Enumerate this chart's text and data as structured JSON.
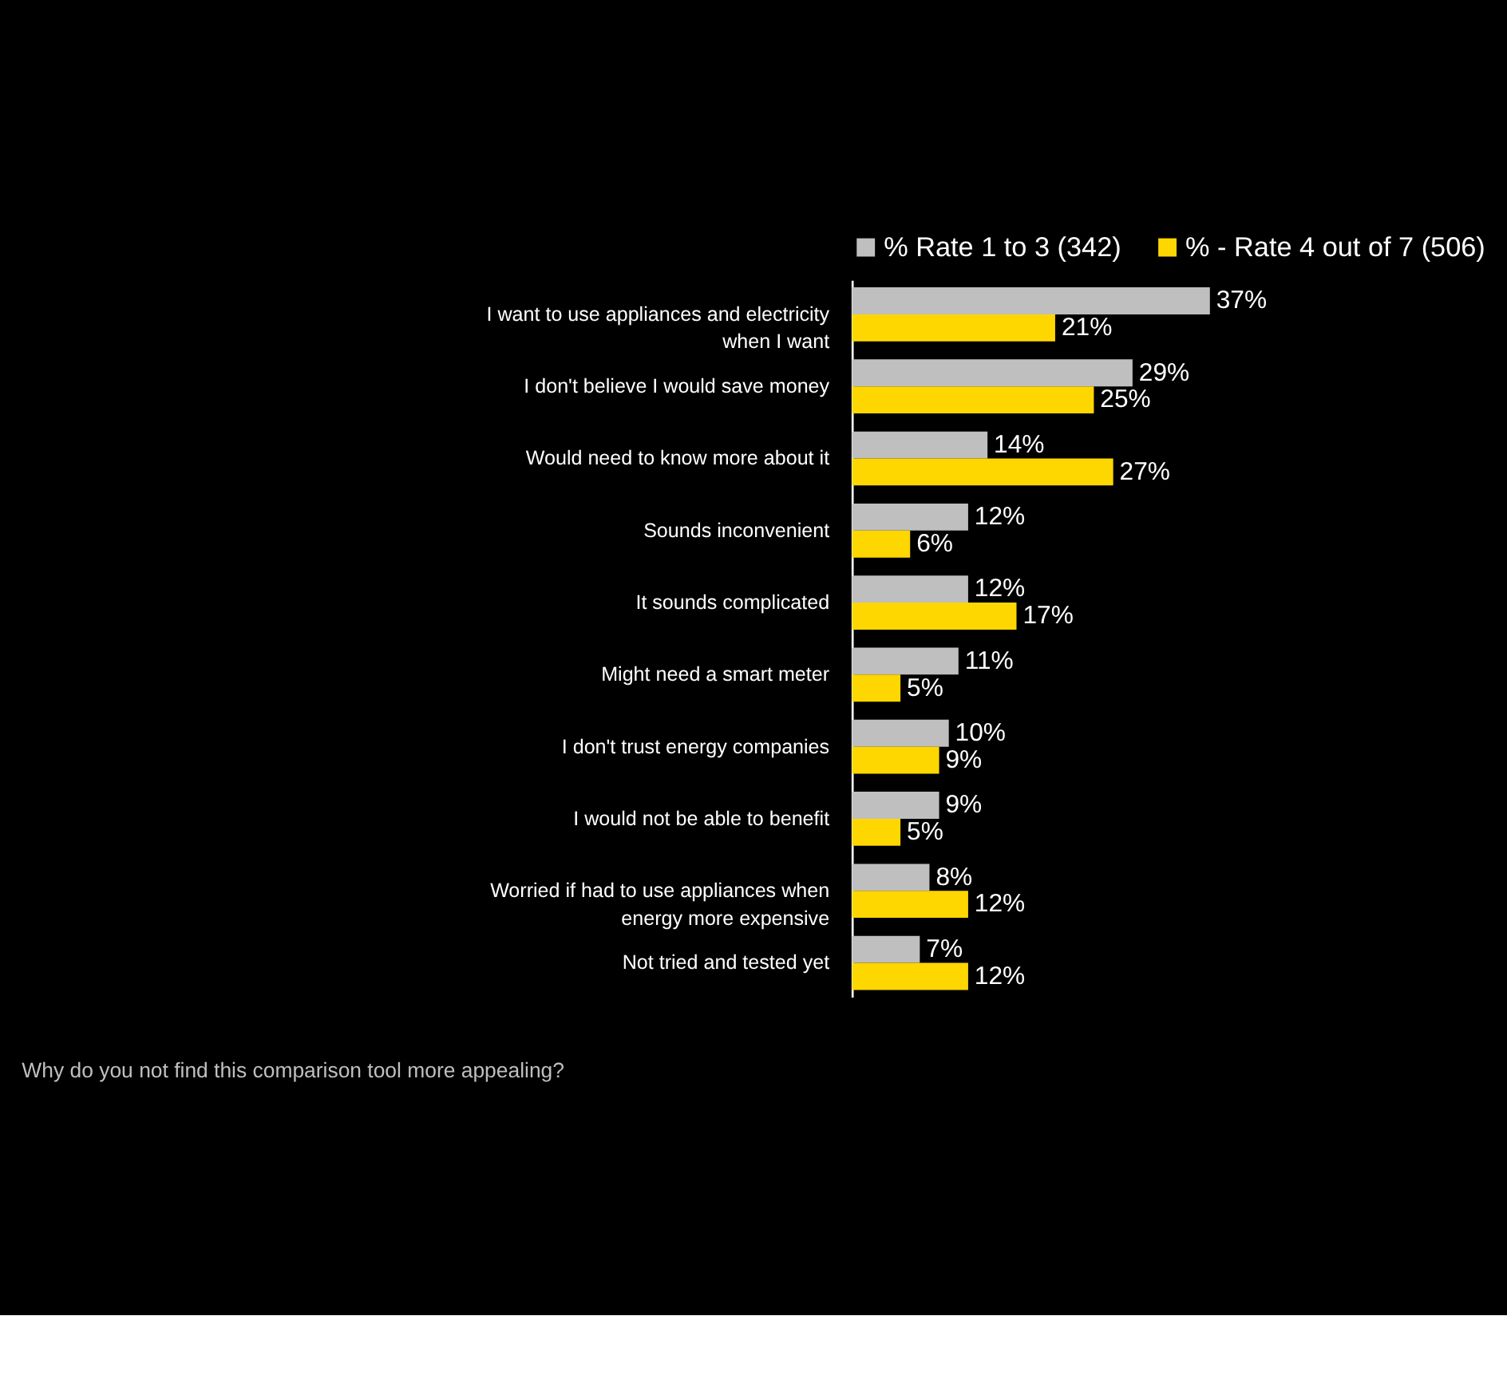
{
  "chart_data": {
    "type": "bar",
    "orientation": "horizontal",
    "legend": "top",
    "categories": [
      "I want to use appliances and electricity when I want",
      "I don't believe I would save money",
      "Would need to know more about it",
      "Sounds inconvenient",
      "It sounds complicated",
      "Might need a smart meter",
      "I don't trust energy companies",
      "I would not be able to benefit",
      "Worried if had to use appliances when energy more expensive",
      "Not tried and tested yet"
    ],
    "series": [
      {
        "name": "% Rate 1 to 3 (342)",
        "color": "#bfbfbf",
        "values": [
          37,
          29,
          14,
          12,
          12,
          11,
          10,
          9,
          8,
          7
        ],
        "value_labels": [
          "37%",
          "29%",
          "14%",
          "12%",
          "12%",
          "11%",
          "10%",
          "9%",
          "8%",
          "7%"
        ]
      },
      {
        "name": "% - Rate 4 out of 7 (506)",
        "color": "#ffd700",
        "values": [
          21,
          25,
          27,
          6,
          17,
          5,
          9,
          5,
          12,
          12
        ],
        "value_labels": [
          "21%",
          "25%",
          "27%",
          "6%",
          "17%",
          "5%",
          "9%",
          "5%",
          "12%",
          "12%"
        ]
      }
    ],
    "annotations": [
      "Why do you not find this comparison tool more appealing?"
    ]
  }
}
